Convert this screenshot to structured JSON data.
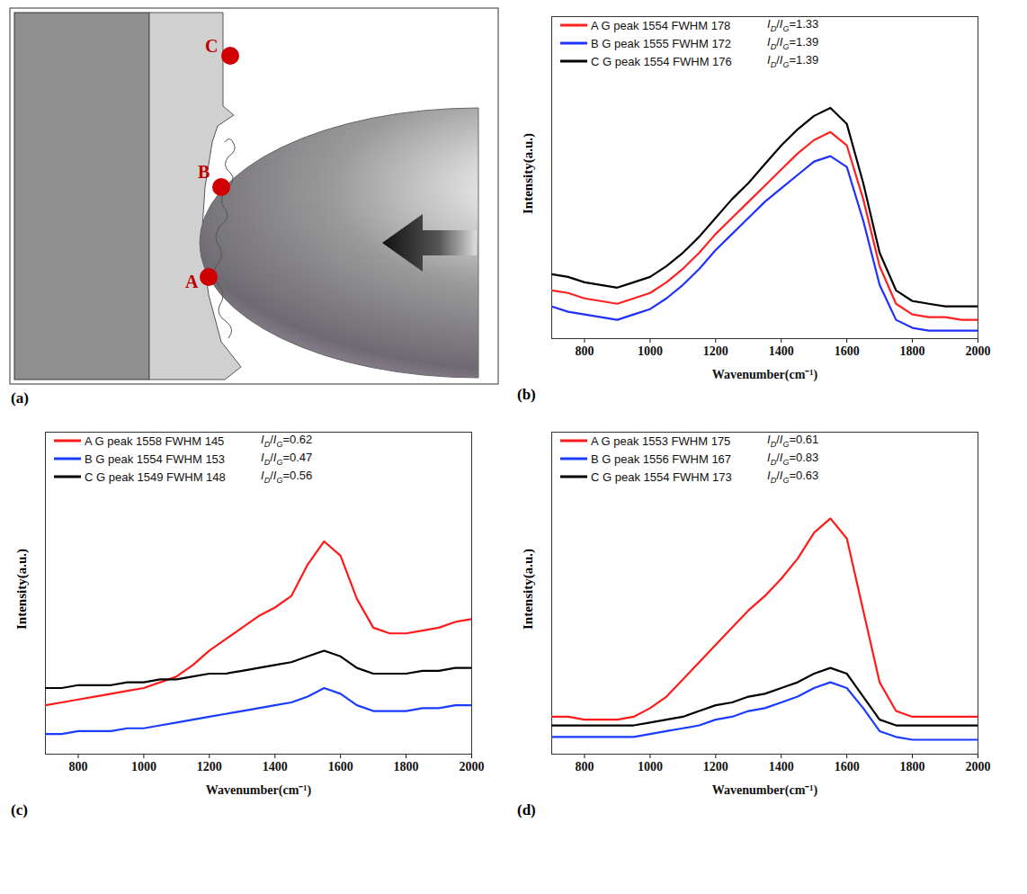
{
  "diagram": {
    "panel": "(a)",
    "points": [
      "C",
      "B",
      "A"
    ]
  },
  "chart_data": [
    {
      "type": "line",
      "panel": "(b)",
      "xlabel": "Wavenumber(cm⁻¹)",
      "ylabel": "Intensity(a.u.)",
      "x": [
        700,
        750,
        800,
        850,
        900,
        950,
        1000,
        1050,
        1100,
        1150,
        1200,
        1250,
        1300,
        1350,
        1400,
        1450,
        1500,
        1550,
        1600,
        1650,
        1700,
        1750,
        1800,
        1850,
        1900,
        1950,
        2000
      ],
      "xlim": [
        700,
        2000
      ],
      "xticks": [
        800,
        1000,
        1200,
        1400,
        1600,
        1800,
        2000
      ],
      "ylim": [
        0,
        120
      ],
      "tick_labels": "x",
      "legend": "top-left",
      "series": [
        {
          "name": "A G peak 1554 FWHM 178",
          "annotation": "ID/IG=1.33",
          "color": "#ff2020",
          "values": [
            18,
            17,
            15,
            14,
            13,
            15,
            17,
            21,
            26,
            32,
            39,
            45,
            51,
            57,
            63,
            69,
            74,
            77,
            72,
            52,
            27,
            13,
            9,
            8,
            8,
            7,
            7
          ]
        },
        {
          "name": "B G peak 1555 FWHM 172",
          "annotation": "ID/IG=1.39",
          "color": "#2030ff",
          "values": [
            12,
            10,
            9,
            8,
            7,
            9,
            11,
            15,
            20,
            26,
            33,
            39,
            45,
            51,
            56,
            61,
            66,
            68,
            64,
            44,
            20,
            7,
            4,
            3,
            3,
            3,
            3
          ]
        },
        {
          "name": "C G peak 1554 FWHM 176",
          "annotation": "ID/IG=1.39",
          "color": "#000000",
          "values": [
            24,
            23,
            21,
            20,
            19,
            21,
            23,
            27,
            32,
            38,
            45,
            52,
            58,
            65,
            72,
            78,
            83,
            86,
            80,
            58,
            32,
            18,
            14,
            13,
            12,
            12,
            12
          ]
        }
      ]
    },
    {
      "type": "line",
      "panel": "(c)",
      "xlabel": "Wavenumber(cm⁻¹)",
      "ylabel": "Intensity(a.u.)",
      "x": [
        700,
        750,
        800,
        850,
        900,
        950,
        1000,
        1050,
        1100,
        1150,
        1200,
        1250,
        1300,
        1350,
        1400,
        1450,
        1500,
        1550,
        1600,
        1650,
        1700,
        1750,
        1800,
        1850,
        1900,
        1950,
        2000
      ],
      "xlim": [
        700,
        2000
      ],
      "xticks": [
        800,
        1000,
        1200,
        1400,
        1600,
        1800,
        2000
      ],
      "ylim": [
        0,
        112
      ],
      "tick_labels": "x",
      "legend": "top-left",
      "series": [
        {
          "name": "A G peak 1558 FWHM 145",
          "annotation": "ID/IG=0.62",
          "color": "#ff1a1a",
          "values": [
            17,
            18,
            19,
            20,
            21,
            22,
            23,
            25,
            27,
            31,
            36,
            40,
            44,
            48,
            51,
            55,
            66,
            74,
            69,
            54,
            44,
            42,
            42,
            43,
            44,
            46,
            47
          ]
        },
        {
          "name": "B G peak 1554 FWHM 153",
          "annotation": "ID/IG=0.47",
          "color": "#1a3cff",
          "values": [
            7,
            7,
            8,
            8,
            8,
            9,
            9,
            10,
            11,
            12,
            13,
            14,
            15,
            16,
            17,
            18,
            20,
            23,
            21,
            17,
            15,
            15,
            15,
            16,
            16,
            17,
            17
          ]
        },
        {
          "name": "C G peak 1549 FWHM 148",
          "annotation": "ID/IG=0.56",
          "color": "#000000",
          "values": [
            23,
            23,
            24,
            24,
            24,
            25,
            25,
            26,
            26,
            27,
            28,
            28,
            29,
            30,
            31,
            32,
            34,
            36,
            34,
            30,
            28,
            28,
            28,
            29,
            29,
            30,
            30
          ]
        }
      ]
    },
    {
      "type": "line",
      "panel": "(d)",
      "xlabel": "Wavenumber(cm⁻¹)",
      "ylabel": "Intensity(a.u.)",
      "x": [
        700,
        750,
        800,
        850,
        900,
        950,
        1000,
        1050,
        1100,
        1150,
        1200,
        1250,
        1300,
        1350,
        1400,
        1450,
        1500,
        1550,
        1600,
        1650,
        1700,
        1750,
        1800,
        1850,
        1900,
        1950,
        2000
      ],
      "xlim": [
        700,
        2000
      ],
      "xticks": [
        800,
        1000,
        1200,
        1400,
        1600,
        1800,
        2000
      ],
      "ylim": [
        0,
        112
      ],
      "tick_labels": "x",
      "legend": "top-left",
      "series": [
        {
          "name": "A G peak 1553 FWHM 175",
          "annotation": "ID/IG=0.61",
          "color": "#ff1a1a",
          "values": [
            13,
            13,
            12,
            12,
            12,
            13,
            16,
            20,
            26,
            32,
            38,
            44,
            50,
            55,
            61,
            68,
            77,
            82,
            75,
            50,
            25,
            15,
            13,
            13,
            13,
            13,
            13
          ]
        },
        {
          "name": "B G peak 1556 FWHM 167",
          "annotation": "ID/IG=0.83",
          "color": "#1a3cff",
          "values": [
            6,
            6,
            6,
            6,
            6,
            6,
            7,
            8,
            9,
            10,
            12,
            13,
            15,
            16,
            18,
            20,
            23,
            25,
            23,
            16,
            8,
            6,
            5,
            5,
            5,
            5,
            5
          ]
        },
        {
          "name": "C G peak 1554 FWHM 173",
          "annotation": "ID/IG=0.63",
          "color": "#000000",
          "values": [
            10,
            10,
            10,
            10,
            10,
            10,
            11,
            12,
            13,
            15,
            17,
            18,
            20,
            21,
            23,
            25,
            28,
            30,
            28,
            20,
            12,
            10,
            10,
            10,
            10,
            10,
            10
          ]
        }
      ]
    }
  ]
}
